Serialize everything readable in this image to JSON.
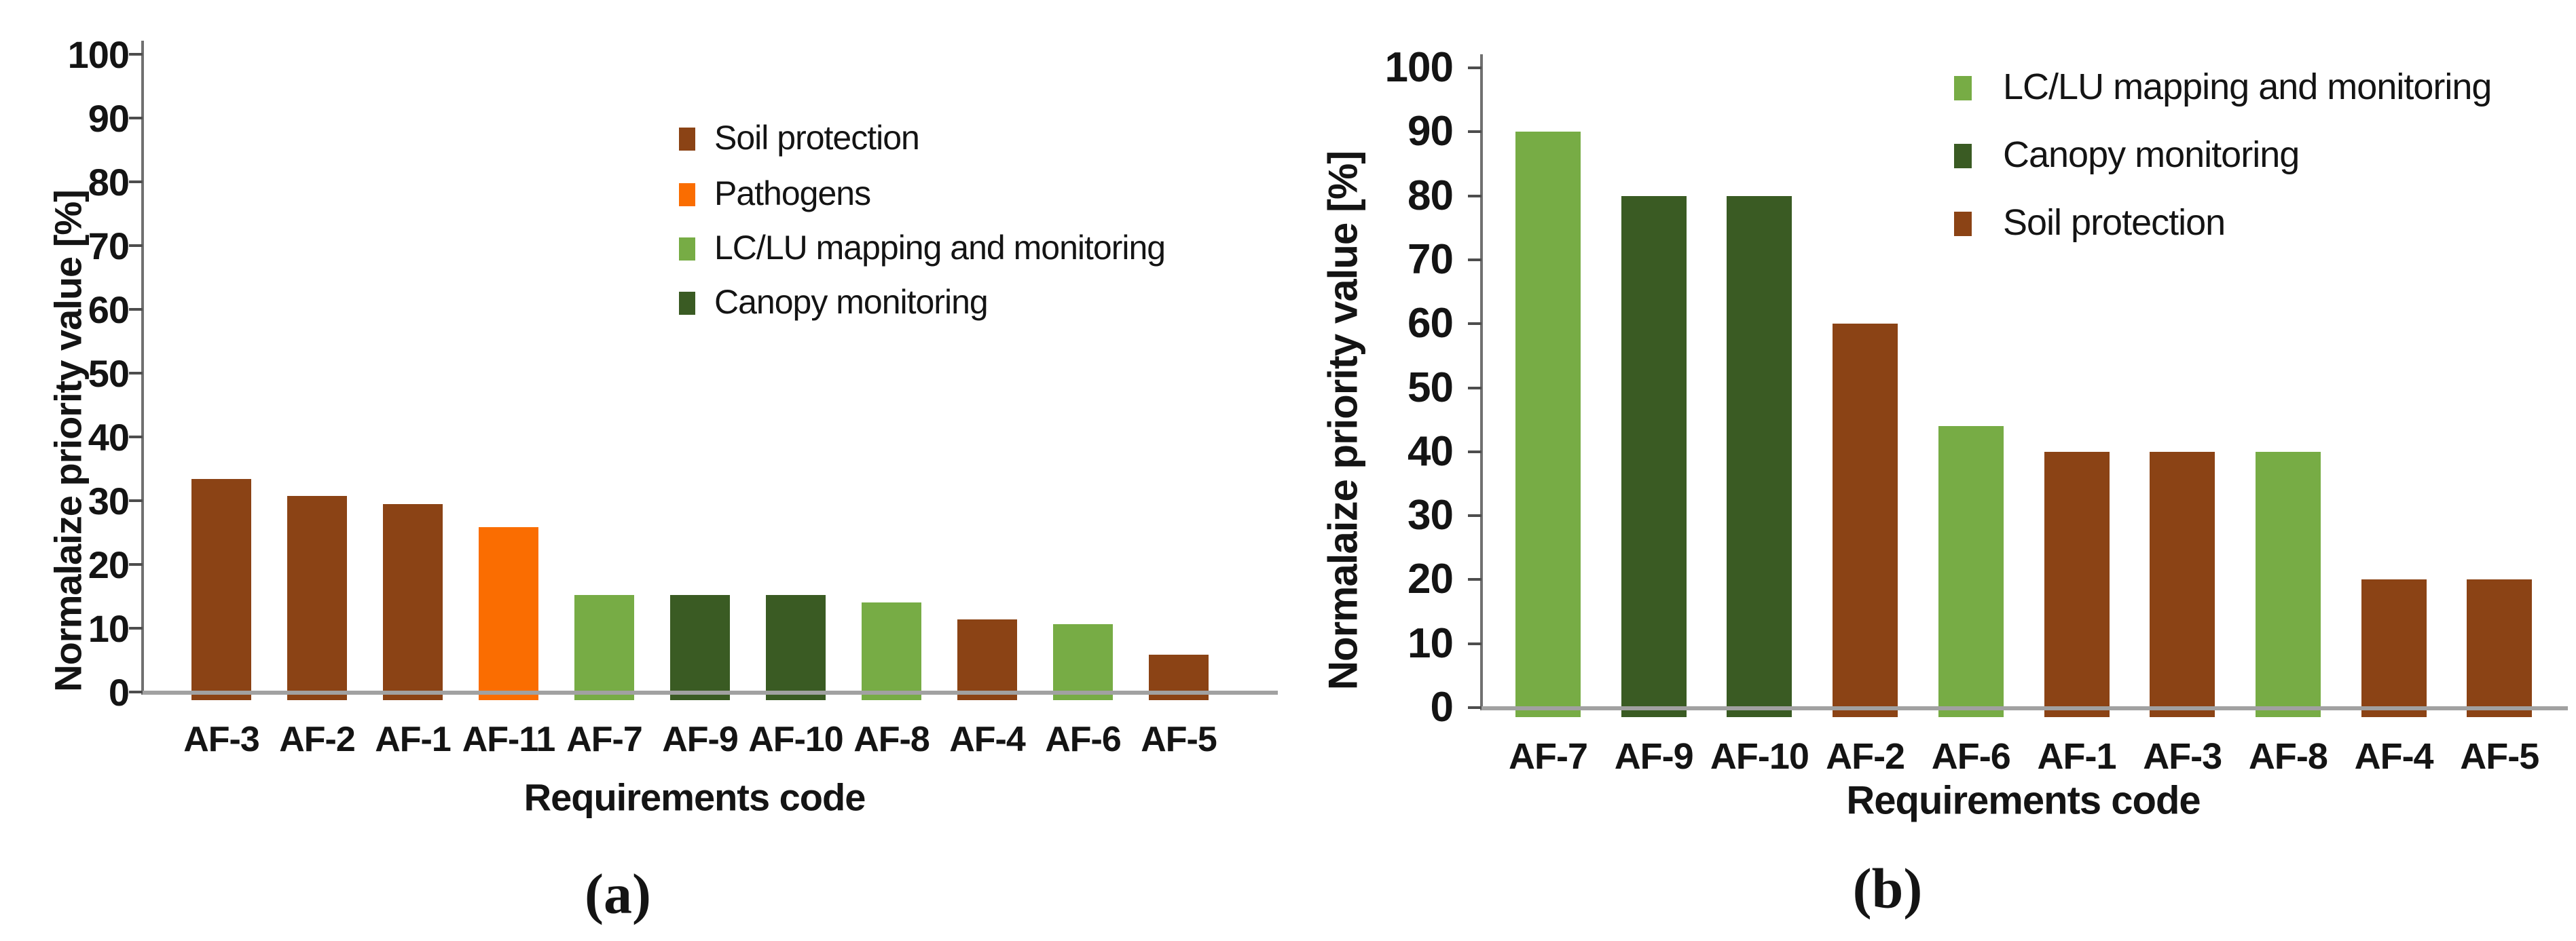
{
  "colors": {
    "Soil protection": "#8B4315",
    "Pathogens": "#FA6D01",
    "LC/LU mapping and monitoring": "#77AC45",
    "Canopy monitoring": "#3A5B23",
    "axis_line": "#707070",
    "baseline": "#A1A1A1",
    "text": "#141414"
  },
  "chart_data": [
    {
      "id": "a",
      "type": "bar",
      "caption": "(a)",
      "xlabel": "Requirements code",
      "ylabel": "Normalaize priority value [%]",
      "ylim": [
        0,
        100
      ],
      "ytick_step": 10,
      "yticks": [
        0,
        10,
        20,
        30,
        40,
        50,
        60,
        70,
        80,
        90,
        100
      ],
      "grid": false,
      "legend_position": "upper-middle",
      "legend": [
        {
          "label": "Soil protection",
          "color": "#8B4315"
        },
        {
          "label": "Pathogens",
          "color": "#FA6D01"
        },
        {
          "label": "LC/LU mapping and monitoring",
          "color": "#77AC45"
        },
        {
          "label": "Canopy monitoring",
          "color": "#3A5B23"
        }
      ],
      "categories": [
        "AF-3",
        "AF-2",
        "AF-1",
        "AF-11",
        "AF-7",
        "AF-9",
        "AF-10",
        "AF-8",
        "AF-4",
        "AF-6",
        "AF-5"
      ],
      "values": [
        33.4,
        30.7,
        29.5,
        25.8,
        15.2,
        15.2,
        15.2,
        14.0,
        11.4,
        10.6,
        5.8
      ],
      "bar_categories": [
        "Soil protection",
        "Soil protection",
        "Soil protection",
        "Pathogens",
        "LC/LU mapping and monitoring",
        "Canopy monitoring",
        "Canopy monitoring",
        "LC/LU mapping and monitoring",
        "Soil protection",
        "LC/LU mapping and monitoring",
        "Soil protection"
      ]
    },
    {
      "id": "b",
      "type": "bar",
      "caption": "(b)",
      "xlabel": "Requirements code",
      "ylabel": "Normalaize priority value [%]",
      "ylim": [
        0,
        100
      ],
      "ytick_step": 10,
      "yticks": [
        0,
        10,
        20,
        30,
        40,
        50,
        60,
        70,
        80,
        90,
        100
      ],
      "grid": false,
      "legend_position": "upper-right",
      "legend": [
        {
          "label": "LC/LU mapping and monitoring",
          "color": "#77AC45"
        },
        {
          "label": "Canopy monitoring",
          "color": "#3A5B23"
        },
        {
          "label": "Soil protection",
          "color": "#8B4315"
        }
      ],
      "categories": [
        "AF-7",
        "AF-9",
        "AF-10",
        "AF-2",
        "AF-6",
        "AF-1",
        "AF-3",
        "AF-8",
        "AF-4",
        "AF-5"
      ],
      "values": [
        90,
        80,
        80,
        60,
        44,
        40,
        40,
        40,
        20,
        20
      ],
      "bar_categories": [
        "LC/LU mapping and monitoring",
        "Canopy monitoring",
        "Canopy monitoring",
        "Soil protection",
        "LC/LU mapping and monitoring",
        "Soil protection",
        "Soil protection",
        "LC/LU mapping and monitoring",
        "Soil protection",
        "Soil protection"
      ]
    }
  ]
}
